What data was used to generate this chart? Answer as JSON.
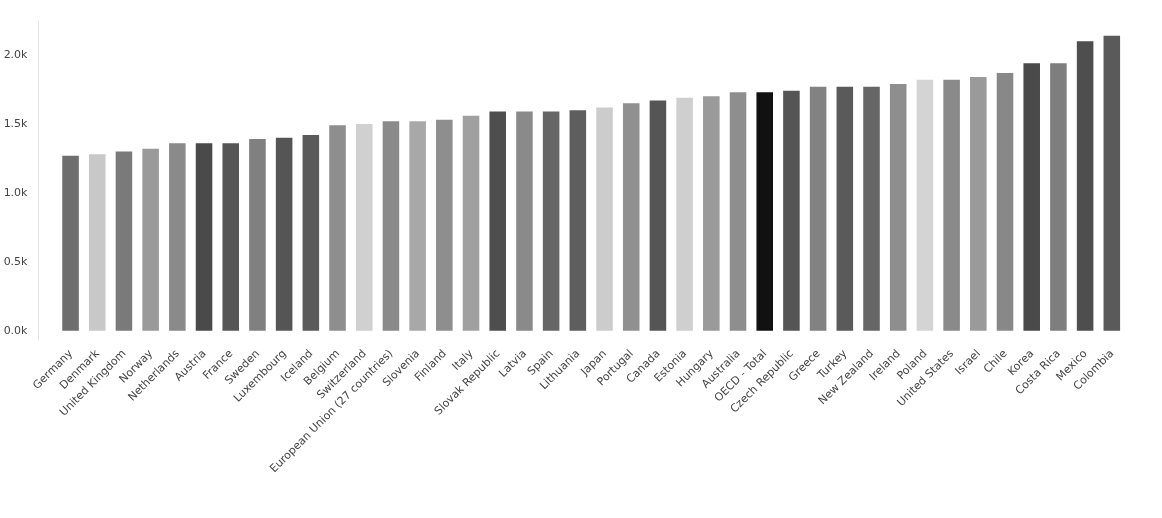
{
  "chart_data": {
    "type": "bar",
    "categories": [
      "Germany",
      "Denmark",
      "United Kingdom",
      "Norway",
      "Netherlands",
      "Austria",
      "France",
      "Sweden",
      "Luxembourg",
      "Iceland",
      "Belgium",
      "Switzerland",
      "European Union (27 countries)",
      "Slovenia",
      "Finland",
      "Italy",
      "Slovak Republic",
      "Latvia",
      "Spain",
      "Lithuania",
      "Japan",
      "Portugal",
      "Canada",
      "Estonia",
      "Hungary",
      "Australia",
      "OECD - Total",
      "Czech Republic",
      "Greece",
      "Turkey",
      "New Zealand",
      "Ireland",
      "Poland",
      "United States",
      "Israel",
      "Chile",
      "Korea",
      "Costa Rica",
      "Mexico",
      "Colombia"
    ],
    "values": [
      1270,
      1280,
      1300,
      1320,
      1360,
      1360,
      1360,
      1390,
      1400,
      1420,
      1490,
      1500,
      1520,
      1520,
      1530,
      1560,
      1590,
      1590,
      1590,
      1600,
      1620,
      1650,
      1670,
      1690,
      1700,
      1730,
      1730,
      1740,
      1770,
      1770,
      1770,
      1790,
      1820,
      1820,
      1840,
      1870,
      1940,
      1940,
      2100,
      2140
    ],
    "colors": [
      "#6e6e6e",
      "#c8c8c8",
      "#7a7a7a",
      "#9a9a9a",
      "#8a8a8a",
      "#4a4a4a",
      "#555555",
      "#808080",
      "#555555",
      "#5a5a5a",
      "#8e8e8e",
      "#d0d0d0",
      "#8a8a8a",
      "#a8a8a8",
      "#8e8e8e",
      "#a0a0a0",
      "#4e4e4e",
      "#8a8a8a",
      "#666666",
      "#5e5e5e",
      "#cccccc",
      "#909090",
      "#555555",
      "#cfcfcf",
      "#9a9a9a",
      "#8e8e8e",
      "#111111",
      "#555555",
      "#828282",
      "#5a5a5a",
      "#666666",
      "#8e8e8e",
      "#d4d4d4",
      "#8a8a8a",
      "#9a9a9a",
      "#888888",
      "#4a4a4a",
      "#7e7e7e",
      "#4e4e4e",
      "#5a5a5a"
    ],
    "ylim": [
      -70,
      2250
    ],
    "yticks": [
      {
        "value": 0,
        "label": "0.0k"
      },
      {
        "value": 500,
        "label": "0.5k"
      },
      {
        "value": 1000,
        "label": "1.0k"
      },
      {
        "value": 1500,
        "label": "1.5k"
      },
      {
        "value": 2000,
        "label": "2.0k"
      }
    ],
    "grid": false
  }
}
